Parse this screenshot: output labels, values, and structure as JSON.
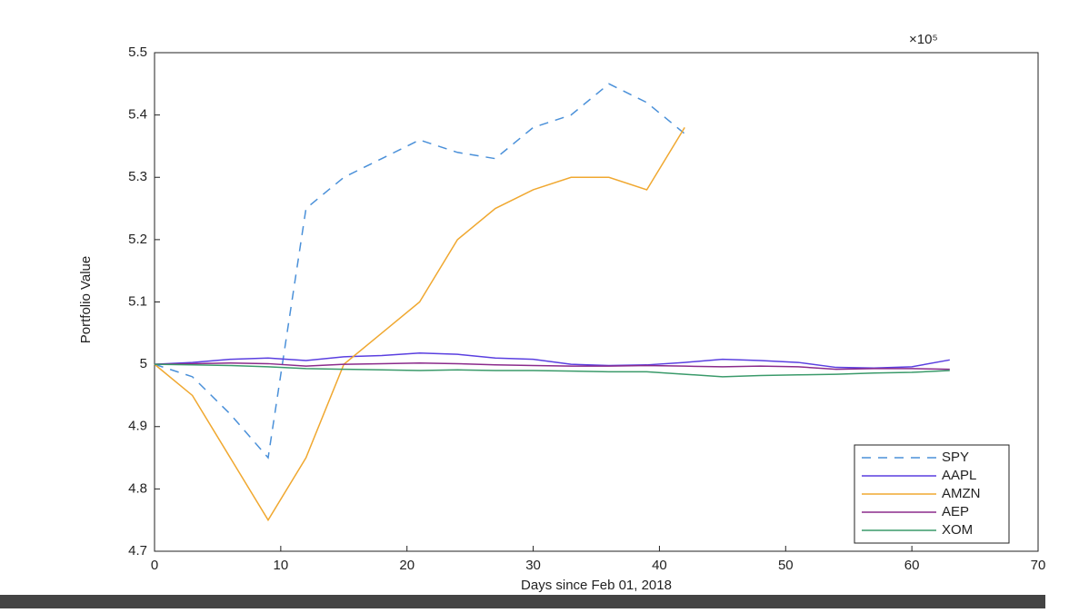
{
  "chart_data": {
    "type": "line",
    "xlabel": "Days since Feb 01, 2018",
    "ylabel": "Portfolio Value",
    "exponent_label": "×10⁵",
    "x": [
      0,
      3,
      6,
      9,
      12,
      15,
      18,
      21,
      24,
      27,
      30,
      33,
      36,
      39,
      42,
      45,
      48,
      51,
      54,
      57,
      60,
      63
    ],
    "series": [
      {
        "name": "SPY",
        "color": "#4a90d9",
        "dash": true,
        "values": [
          5.0,
          4.98,
          4.92,
          4.85,
          5.25,
          5.3,
          5.33,
          5.36,
          5.34,
          5.33,
          5.38,
          5.4,
          5.45,
          5.42,
          5.37,
          null,
          null,
          null,
          null,
          null,
          null,
          null
        ]
      },
      {
        "name": "AAPL",
        "color": "#5a3fe0",
        "dash": false,
        "values": [
          5.0,
          5.003,
          5.008,
          5.01,
          5.006,
          5.012,
          5.014,
          5.018,
          5.016,
          5.01,
          5.008,
          5.0,
          4.998,
          4.999,
          5.003,
          5.008,
          5.006,
          5.003,
          4.995,
          4.994,
          4.996,
          5.007
        ]
      },
      {
        "name": "AMZN",
        "color": "#f0a830",
        "dash": false,
        "values": [
          5.0,
          4.95,
          4.85,
          4.75,
          4.85,
          5.0,
          5.05,
          5.1,
          5.2,
          5.25,
          5.28,
          5.3,
          5.3,
          5.28,
          5.38,
          null,
          null,
          null,
          null,
          null,
          null,
          null
        ]
      },
      {
        "name": "AEP",
        "color": "#8b2a8b",
        "dash": false,
        "values": [
          5.0,
          5.001,
          5.002,
          5.001,
          4.997,
          5.0,
          5.001,
          5.002,
          5.001,
          4.999,
          4.998,
          4.997,
          4.997,
          4.998,
          4.997,
          4.996,
          4.997,
          4.996,
          4.992,
          4.993,
          4.993,
          4.992
        ]
      },
      {
        "name": "XOM",
        "color": "#3a9a6a",
        "dash": false,
        "values": [
          5.0,
          4.999,
          4.998,
          4.996,
          4.993,
          4.992,
          4.991,
          4.99,
          4.991,
          4.99,
          4.99,
          4.989,
          4.988,
          4.988,
          4.984,
          4.98,
          4.982,
          4.983,
          4.984,
          4.986,
          4.987,
          4.99
        ]
      }
    ],
    "xlim": [
      0,
      70
    ],
    "xticks": [
      0,
      10,
      20,
      30,
      40,
      50,
      60,
      70
    ],
    "ylim": [
      4.7,
      5.5
    ],
    "yticks": [
      4.7,
      4.8,
      4.9,
      {
        "value": 5.0,
        "label": "5"
      },
      5.1,
      5.2,
      5.3,
      5.4,
      5.5
    ],
    "legend": "lower-right"
  }
}
